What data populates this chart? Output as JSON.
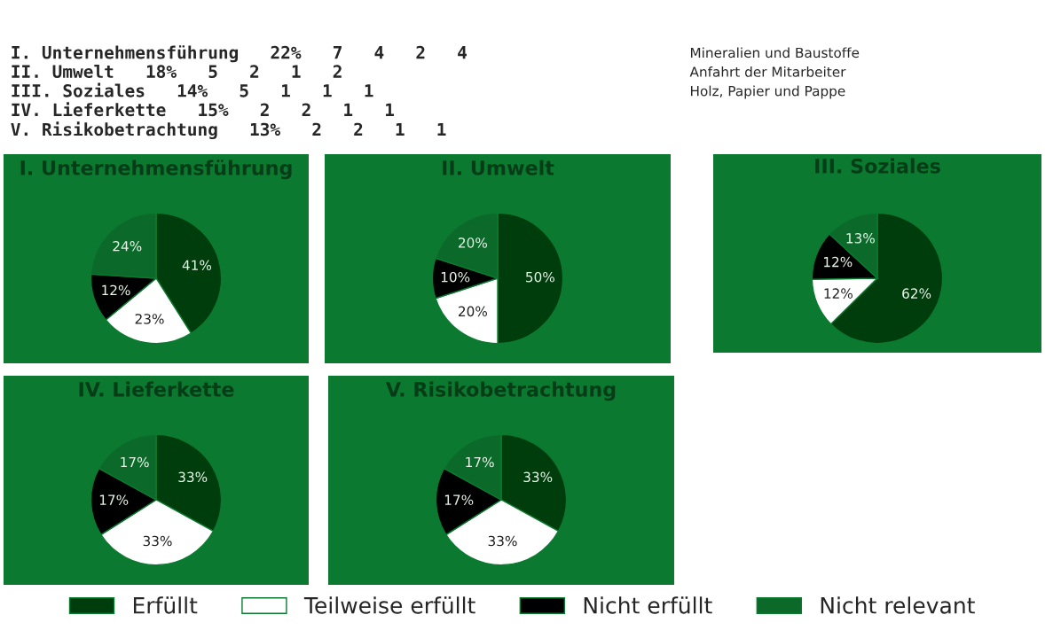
{
  "chart_data": [
    {
      "type": "other",
      "annotations": [
        "I. Unternehmensführung   22%   7   4   2   4",
        "II. Umwelt   18%   5   2   1   2",
        "III. Soziales   14%   5   1   1   1",
        "IV. Lieferkette   15%   2   2   1   1",
        "V. Risikobetrachtung   13%   2   2   1   1",
        "Mineralien und Baustoffe",
        "Anfahrt der Mitarbeiter",
        "Holz, Papier und Pappe"
      ]
    },
    {
      "type": "pie",
      "title": "I. Unternehmensführung",
      "categories": [
        "Erfüllt",
        "Teilweise erfüllt",
        "Nicht erfüllt",
        "Nicht relevant"
      ],
      "values": [
        41,
        23,
        12,
        24
      ],
      "value_labels": [
        "41%",
        "23%",
        "12%",
        "24%"
      ],
      "colors": [
        "#003d0c",
        "#ffffff",
        "#000000",
        "#0b6a2a"
      ],
      "legend": "bottom"
    },
    {
      "type": "pie",
      "title": "II. Umwelt",
      "categories": [
        null,
        null,
        null,
        null
      ],
      "values": [
        50,
        20,
        10,
        20
      ],
      "value_labels": [
        "50%",
        "20%",
        "10%",
        "20%"
      ],
      "colors": [
        "#003d0c",
        "#ffffff",
        "#000000",
        "#0b6a2a"
      ]
    },
    {
      "type": "pie",
      "title": "III. Soziales",
      "categories": [
        null,
        null,
        null,
        null
      ],
      "values": [
        62,
        12,
        12,
        13
      ],
      "value_labels": [
        "62%",
        "12%",
        "12%",
        "13%"
      ],
      "colors": [
        "#003d0c",
        "#ffffff",
        "#000000",
        "#0b6a2a"
      ]
    },
    {
      "type": "pie",
      "title": "IV. Lieferkette",
      "categories": [
        null,
        null,
        null,
        null
      ],
      "values": [
        33,
        33,
        17,
        17
      ],
      "value_labels": [
        "33%",
        "33%",
        "17%",
        "17%"
      ],
      "colors": [
        "#003d0c",
        "#ffffff",
        "#000000",
        "#0b6a2a"
      ]
    },
    {
      "type": "pie",
      "title": "V. Risikobetrachtung",
      "categories": [
        null,
        null,
        null,
        null
      ],
      "values": [
        33,
        33,
        17,
        17
      ],
      "value_labels": [
        "33%",
        "33%",
        "17%",
        "17%"
      ],
      "colors": [
        "#003d0c",
        "#ffffff",
        "#000000",
        "#0b6a2a"
      ]
    }
  ]
}
